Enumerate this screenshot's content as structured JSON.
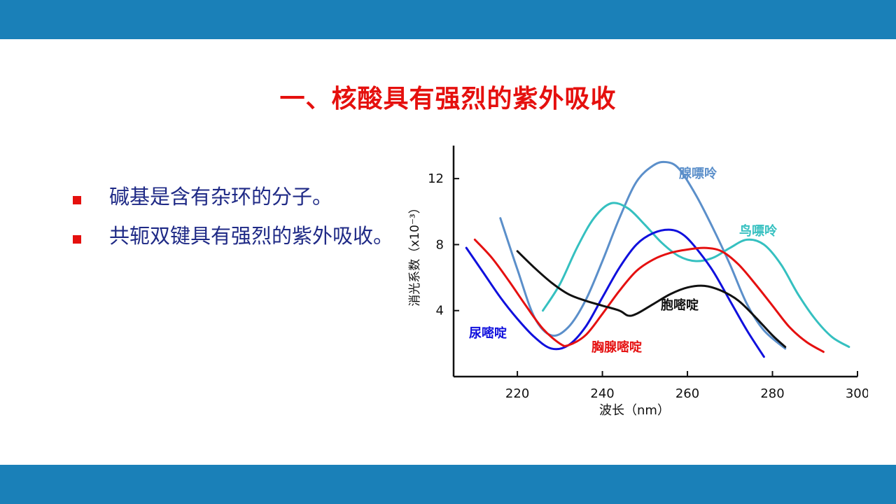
{
  "slide": {
    "title": "一、核酸具有强烈的紫外吸收",
    "bullets": [
      "碱基是含有杂环的分子。",
      "共轭双键具有强烈的紫外吸收。"
    ]
  },
  "colors": {
    "top_bar": "#1a80b8",
    "title": "#e5100e",
    "bullet_text": "#1f2a86",
    "bullet_marker": "#e5100e"
  },
  "chart_data": {
    "type": "line",
    "xlabel": "波长（nm）",
    "ylabel": "消光系数（x10⁻³）",
    "xlim": [
      205,
      300
    ],
    "ylim": [
      0,
      14
    ],
    "xticks": [
      220,
      240,
      260,
      280,
      300
    ],
    "yticks": [
      4,
      8,
      12
    ],
    "series": [
      {
        "name": "腺嘌呤",
        "color": "#5b8fca",
        "x": [
          216,
          220,
          224,
          228,
          232,
          236,
          240,
          244,
          248,
          252,
          255,
          258,
          262,
          266,
          270,
          274,
          278,
          283
        ],
        "y": [
          9.6,
          6.5,
          3.6,
          2.5,
          3.0,
          4.6,
          7.0,
          9.6,
          11.8,
          12.8,
          13.0,
          12.6,
          11.0,
          9.0,
          6.8,
          4.4,
          2.8,
          1.7
        ]
      },
      {
        "name": "鸟嘌呤",
        "color": "#35c0c0",
        "x": [
          226,
          230,
          234,
          238,
          242,
          246,
          250,
          254,
          258,
          262,
          266,
          270,
          274,
          278,
          282,
          286,
          290,
          294,
          298
        ],
        "y": [
          4.0,
          5.6,
          7.8,
          9.6,
          10.5,
          10.2,
          9.2,
          8.1,
          7.3,
          7.0,
          7.2,
          7.8,
          8.3,
          8.0,
          6.8,
          5.0,
          3.5,
          2.4,
          1.8
        ]
      },
      {
        "name": "尿嘧啶",
        "color": "#1010dd",
        "x": [
          208,
          212,
          216,
          220,
          224,
          228,
          232,
          236,
          240,
          244,
          248,
          252,
          256,
          259,
          262,
          266,
          270,
          274,
          278
        ],
        "y": [
          7.8,
          6.3,
          4.8,
          3.5,
          2.4,
          1.7,
          1.9,
          3.0,
          4.8,
          6.6,
          8.0,
          8.7,
          8.9,
          8.6,
          7.8,
          6.4,
          4.6,
          2.8,
          1.2
        ]
      },
      {
        "name": "胸腺嘧啶",
        "color": "#e51010",
        "x": [
          210,
          214,
          218,
          222,
          226,
          230,
          232,
          236,
          240,
          244,
          248,
          252,
          256,
          260,
          264,
          268,
          272,
          276,
          280,
          284,
          288,
          292
        ],
        "y": [
          8.3,
          7.2,
          5.8,
          4.3,
          2.9,
          2.0,
          1.9,
          2.5,
          3.8,
          5.2,
          6.4,
          7.1,
          7.5,
          7.7,
          7.8,
          7.6,
          6.8,
          5.6,
          4.3,
          3.0,
          2.1,
          1.5
        ]
      },
      {
        "name": "胞嘧啶",
        "color": "#111111",
        "x": [
          220,
          224,
          228,
          232,
          236,
          240,
          244,
          246,
          248,
          252,
          256,
          260,
          264,
          268,
          272,
          276,
          280,
          283
        ],
        "y": [
          7.6,
          6.6,
          5.7,
          5.0,
          4.6,
          4.3,
          4.0,
          3.7,
          3.8,
          4.4,
          5.0,
          5.4,
          5.5,
          5.2,
          4.6,
          3.6,
          2.5,
          1.8
        ]
      }
    ]
  }
}
